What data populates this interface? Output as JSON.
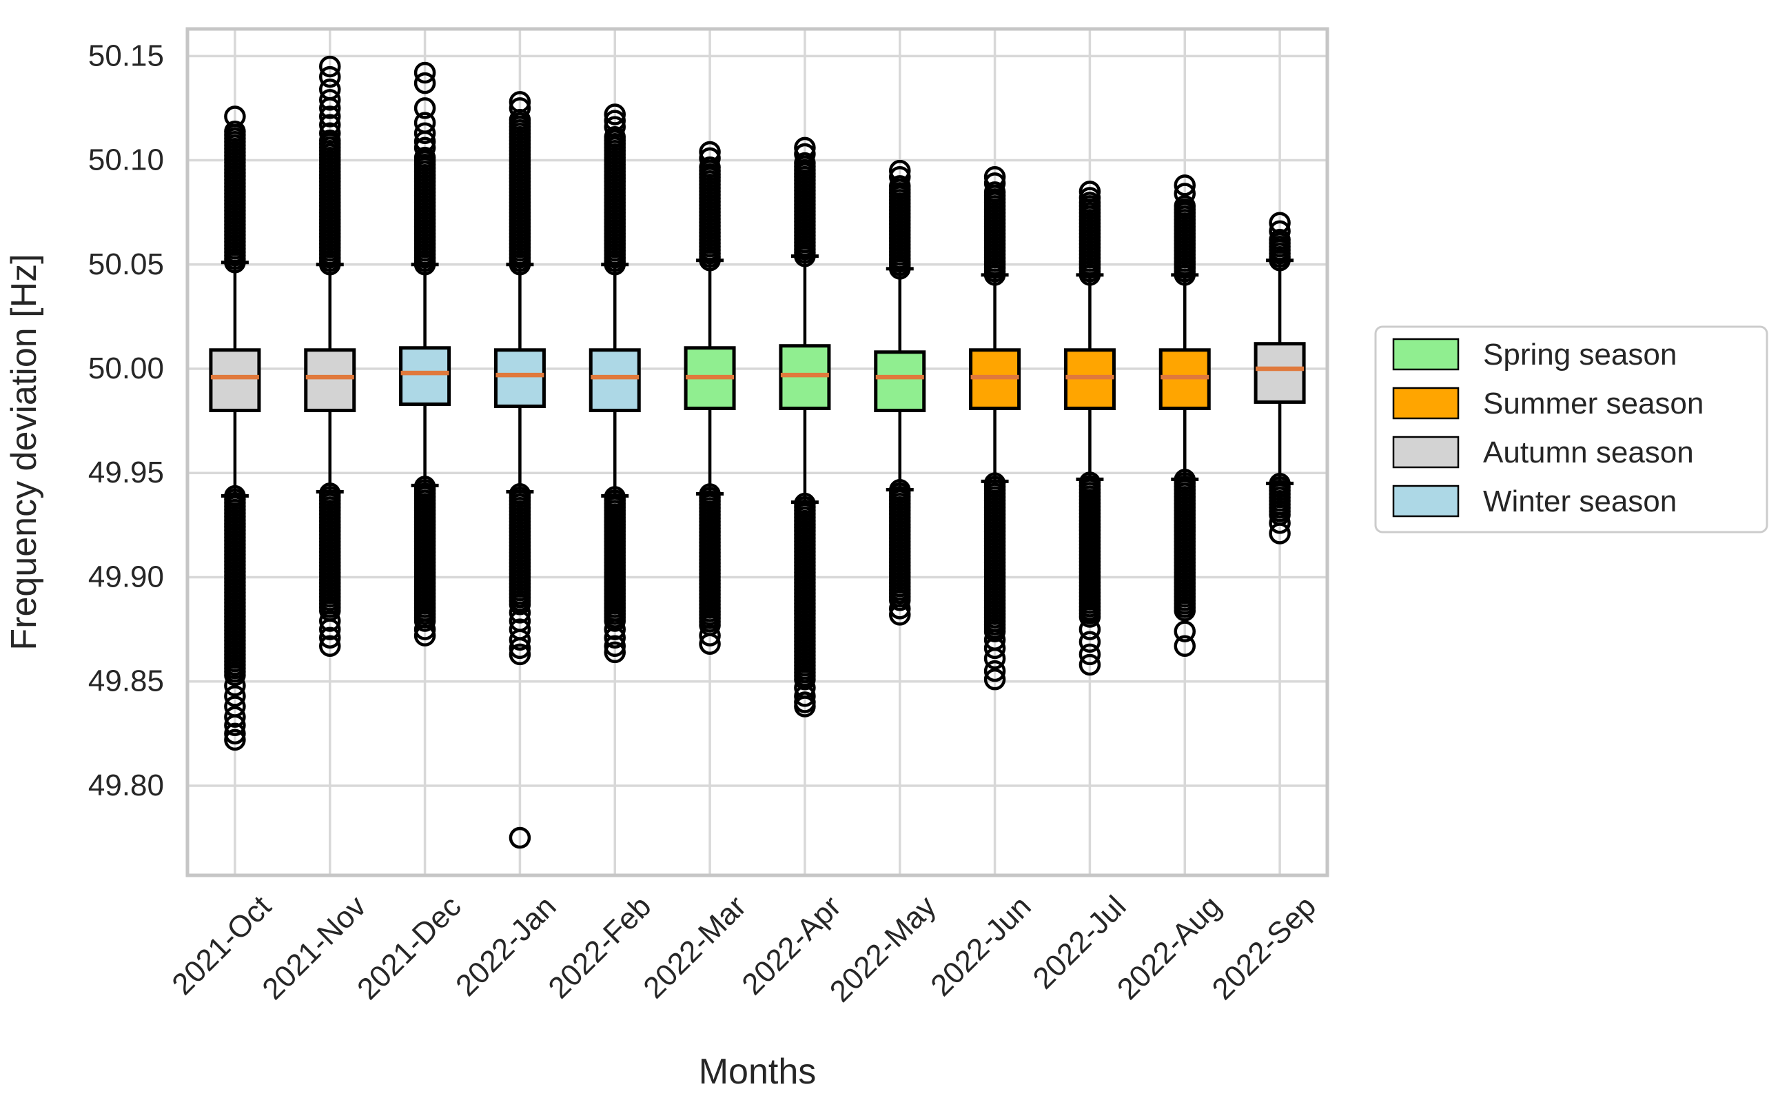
{
  "chart_data": {
    "type": "box",
    "title": "",
    "xlabel": "Months",
    "ylabel": "Frequency deviation [Hz]",
    "ylim": [
      49.757,
      50.163
    ],
    "yticks": [
      "49.80",
      "49.85",
      "49.90",
      "49.95",
      "50.00",
      "50.05",
      "50.10",
      "50.15"
    ],
    "grid": true,
    "legend_position": "right-outside",
    "outlier_marker": "open-circle",
    "categories": [
      "2021-Oct",
      "2021-Nov",
      "2021-Dec",
      "2022-Jan",
      "2022-Feb",
      "2022-Mar",
      "2022-Apr",
      "2022-May",
      "2022-Jun",
      "2022-Jul",
      "2022-Aug",
      "2022-Sep"
    ],
    "legend": [
      {
        "label": "Spring season",
        "color": "#90ee90"
      },
      {
        "label": "Summer season",
        "color": "#ffa500"
      },
      {
        "label": "Autumn season",
        "color": "#d3d3d3"
      },
      {
        "label": "Winter season",
        "color": "#add8e6"
      }
    ],
    "season_colors": {
      "spring": "#90ee90",
      "summer": "#ffa500",
      "autumn": "#d3d3d3",
      "winter": "#add8e6"
    },
    "boxes": [
      {
        "label": "2021-Oct",
        "season": "autumn",
        "q1": 49.98,
        "median": 49.996,
        "q3": 50.009,
        "whisker_low": 49.939,
        "whisker_high": 50.051,
        "upper_dense": [
          50.051,
          50.115
        ],
        "upper_sparse": [
          50.121
        ],
        "lower_dense": [
          49.853,
          49.939
        ],
        "lower_sparse": [
          49.848,
          49.843,
          49.838,
          49.833,
          49.829,
          49.825,
          49.822
        ]
      },
      {
        "label": "2021-Nov",
        "season": "autumn",
        "q1": 49.98,
        "median": 49.996,
        "q3": 50.009,
        "whisker_low": 49.941,
        "whisker_high": 50.05,
        "upper_dense": [
          50.05,
          50.11
        ],
        "upper_sparse": [
          50.113,
          50.117,
          50.121,
          50.125,
          50.129,
          50.134,
          50.14,
          50.145
        ],
        "lower_dense": [
          49.884,
          49.941
        ],
        "lower_sparse": [
          49.879,
          49.875,
          49.871,
          49.867
        ]
      },
      {
        "label": "2021-Dec",
        "season": "winter",
        "q1": 49.983,
        "median": 49.998,
        "q3": 50.01,
        "whisker_low": 49.944,
        "whisker_high": 50.05,
        "upper_dense": [
          50.05,
          50.102
        ],
        "upper_sparse": [
          50.106,
          50.109,
          50.113,
          50.118,
          50.125,
          50.137,
          50.142
        ],
        "lower_dense": [
          49.879,
          49.944
        ],
        "lower_sparse": [
          49.875,
          49.872
        ]
      },
      {
        "label": "2022-Jan",
        "season": "winter",
        "q1": 49.982,
        "median": 49.997,
        "q3": 50.009,
        "whisker_low": 49.941,
        "whisker_high": 50.05,
        "upper_dense": [
          50.05,
          50.121
        ],
        "upper_sparse": [
          50.125,
          50.128
        ],
        "lower_dense": [
          49.887,
          49.941
        ],
        "lower_sparse": [
          49.883,
          49.879,
          49.875,
          49.87,
          49.866,
          49.863,
          49.775
        ]
      },
      {
        "label": "2022-Feb",
        "season": "winter",
        "q1": 49.98,
        "median": 49.996,
        "q3": 50.009,
        "whisker_low": 49.939,
        "whisker_high": 50.05,
        "upper_dense": [
          50.05,
          50.112
        ],
        "upper_sparse": [
          50.116,
          50.119,
          50.122
        ],
        "lower_dense": [
          49.879,
          49.939
        ],
        "lower_sparse": [
          49.875,
          49.871,
          49.867,
          49.864
        ]
      },
      {
        "label": "2022-Mar",
        "season": "spring",
        "q1": 49.981,
        "median": 49.996,
        "q3": 50.01,
        "whisker_low": 49.94,
        "whisker_high": 50.052,
        "upper_dense": [
          50.052,
          50.097
        ],
        "upper_sparse": [
          50.101,
          50.104
        ],
        "lower_dense": [
          49.877,
          49.94
        ],
        "lower_sparse": [
          49.872,
          49.868
        ]
      },
      {
        "label": "2022-Apr",
        "season": "spring",
        "q1": 49.981,
        "median": 49.997,
        "q3": 50.011,
        "whisker_low": 49.936,
        "whisker_high": 50.054,
        "upper_dense": [
          50.054,
          50.099
        ],
        "upper_sparse": [
          50.103,
          50.106
        ],
        "lower_dense": [
          49.851,
          49.936
        ],
        "lower_sparse": [
          49.847,
          49.843,
          49.84,
          49.838
        ]
      },
      {
        "label": "2022-May",
        "season": "spring",
        "q1": 49.98,
        "median": 49.996,
        "q3": 50.008,
        "whisker_low": 49.942,
        "whisker_high": 50.048,
        "upper_dense": [
          50.048,
          50.088
        ],
        "upper_sparse": [
          50.092,
          50.095
        ],
        "lower_dense": [
          49.889,
          49.942
        ],
        "lower_sparse": [
          49.885,
          49.882
        ]
      },
      {
        "label": "2022-Jun",
        "season": "summer",
        "q1": 49.981,
        "median": 49.996,
        "q3": 50.009,
        "whisker_low": 49.946,
        "whisker_high": 50.045,
        "upper_dense": [
          50.045,
          50.086
        ],
        "upper_sparse": [
          50.089,
          50.092
        ],
        "lower_dense": [
          49.874,
          49.946
        ],
        "lower_sparse": [
          49.87,
          49.866,
          49.861,
          49.855,
          49.851
        ]
      },
      {
        "label": "2022-Jul",
        "season": "summer",
        "q1": 49.981,
        "median": 49.996,
        "q3": 50.009,
        "whisker_low": 49.947,
        "whisker_high": 50.045,
        "upper_dense": [
          50.045,
          50.081
        ],
        "upper_sparse": [
          50.082,
          50.085
        ],
        "lower_dense": [
          49.881,
          49.947
        ],
        "lower_sparse": [
          49.875,
          49.869,
          49.863,
          49.858
        ]
      },
      {
        "label": "2022-Aug",
        "season": "summer",
        "q1": 49.981,
        "median": 49.996,
        "q3": 50.009,
        "whisker_low": 49.947,
        "whisker_high": 50.045,
        "upper_dense": [
          50.045,
          50.079
        ],
        "upper_sparse": [
          50.084,
          50.088
        ],
        "lower_dense": [
          49.884,
          49.947
        ],
        "lower_sparse": [
          49.874,
          49.867
        ]
      },
      {
        "label": "2022-Sep",
        "season": "autumn",
        "q1": 49.984,
        "median": 50.0,
        "q3": 50.012,
        "whisker_low": 49.945,
        "whisker_high": 50.052,
        "upper_dense": [
          50.052,
          50.062
        ],
        "upper_sparse": [
          50.066,
          50.07
        ],
        "lower_dense": [
          49.93,
          49.945
        ],
        "lower_sparse": [
          49.926,
          49.921
        ]
      }
    ],
    "style": {
      "background": "#ffffff",
      "grid_color": "#d8d8d8",
      "spine_color": "#c6c6c6",
      "box_edge_color": "#000000",
      "median_color": "#e0793c",
      "whisker_color": "#000000",
      "outlier_color": "#000000",
      "text_color": "#262626",
      "legend_border_color": "#cccccc",
      "legend_background": "#ffffff"
    }
  }
}
